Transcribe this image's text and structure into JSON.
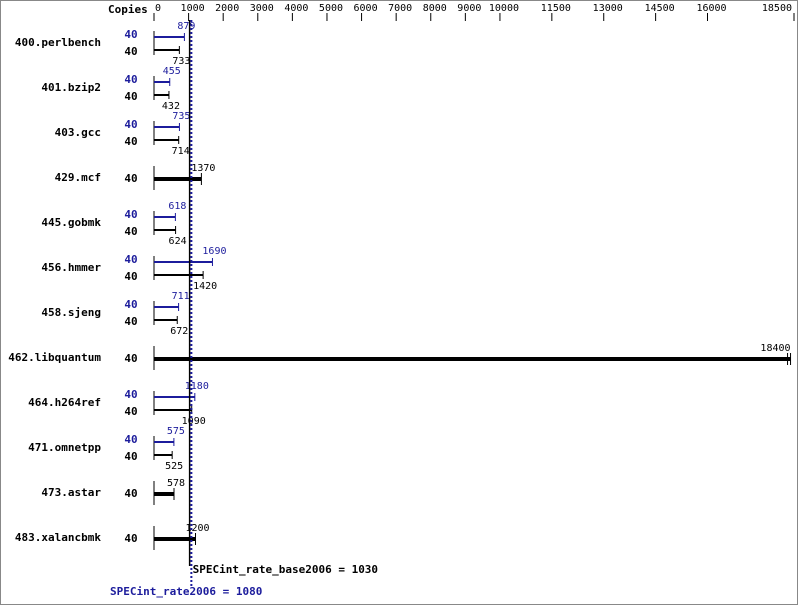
{
  "chart_data": {
    "type": "bar",
    "orientation": "horizontal",
    "copies_header": "Copies",
    "categories": [
      "400.perlbench",
      "401.bzip2",
      "403.gcc",
      "429.mcf",
      "445.gobmk",
      "456.hmmer",
      "458.sjeng",
      "462.libquantum",
      "464.h264ref",
      "471.omnetpp",
      "473.astar",
      "483.xalancbmk"
    ],
    "series": [
      {
        "color": "#1c1c9c",
        "copies": [
          40,
          40,
          40,
          null,
          40,
          40,
          40,
          null,
          40,
          40,
          null,
          null
        ],
        "values": [
          879,
          455,
          735,
          null,
          618,
          1690,
          711,
          null,
          1180,
          575,
          null,
          null
        ]
      },
      {
        "color": "#000000",
        "copies": [
          40,
          40,
          40,
          40,
          40,
          40,
          40,
          40,
          40,
          40,
          40,
          40
        ],
        "values": [
          733,
          432,
          714,
          1370,
          624,
          1420,
          672,
          18400,
          1090,
          525,
          578,
          1200
        ]
      }
    ],
    "xlim": [
      0,
      18500
    ],
    "xticks": [
      0,
      1000,
      2000,
      3000,
      4000,
      5000,
      6000,
      7000,
      8000,
      9000,
      10000,
      11500,
      13000,
      14500,
      16000,
      18500
    ],
    "reference_lines": [
      {
        "value": 1030,
        "label": "SPECint_rate_base2006 = 1030",
        "color": "#000000",
        "dashed": false
      },
      {
        "value": 1080,
        "label": "SPECint_rate2006 = 1080",
        "color": "#1c1c9c",
        "dashed": true
      }
    ]
  }
}
